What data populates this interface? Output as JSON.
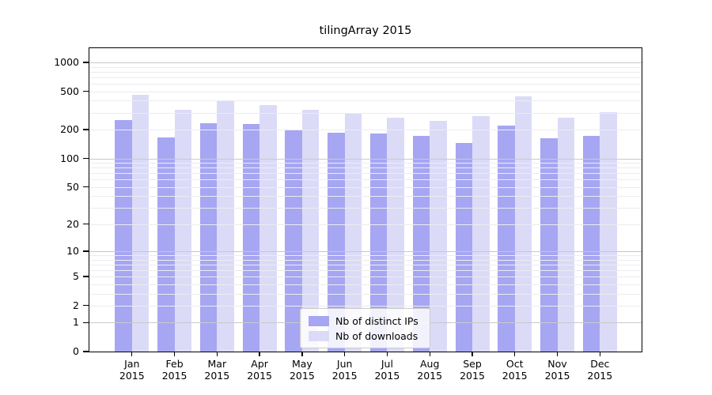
{
  "chart_data": {
    "type": "bar",
    "title": "tilingArray 2015",
    "scale": "log1p",
    "grid": true,
    "legend_position": "lower center (inside axes)",
    "categories": [
      "Jan",
      "Feb",
      "Mar",
      "Apr",
      "May",
      "Jun",
      "Jul",
      "Aug",
      "Sep",
      "Oct",
      "Nov",
      "Dec"
    ],
    "category_year": "2015",
    "series": [
      {
        "name": "Nb of distinct IPs",
        "color": "#a6a6f2",
        "values": [
          250,
          165,
          233,
          230,
          202,
          187,
          182,
          173,
          146,
          220,
          163,
          172
        ]
      },
      {
        "name": "Nb of downloads",
        "color": "#dbdbf8",
        "values": [
          465,
          320,
          395,
          363,
          322,
          300,
          265,
          245,
          276,
          445,
          265,
          306
        ]
      }
    ],
    "yticks": [
      0,
      1,
      2,
      5,
      10,
      20,
      50,
      100,
      200,
      500,
      1000
    ],
    "ylim": [
      0,
      1400
    ],
    "minor_gridlines": [
      2,
      3,
      4,
      5,
      6,
      7,
      8,
      9,
      20,
      30,
      40,
      50,
      60,
      70,
      80,
      90,
      200,
      300,
      400,
      500,
      600,
      700,
      800,
      900
    ],
    "major_gridlines": [
      1,
      10,
      100,
      1000
    ],
    "colors": {
      "axes": "#000000",
      "grid_minor": "#ececf1",
      "grid_major": "#c9c9cd",
      "background": "#ffffff"
    }
  }
}
